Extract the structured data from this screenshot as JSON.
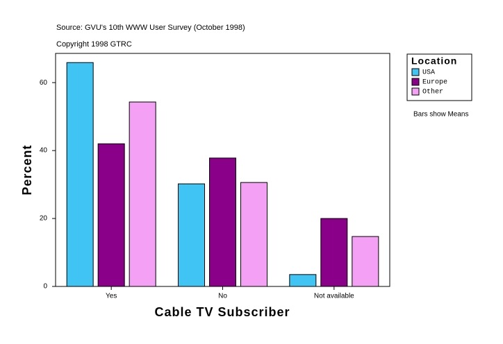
{
  "chart_data": {
    "type": "bar",
    "subtitle": "Source: GVU's 10th WWW User Survey (October 1998)",
    "copyright": "Copyright 1998 GTRC",
    "x_label": "Cable TV Subscriber",
    "y_label": "Percent",
    "legend_title": "Location",
    "note": "Bars show Means",
    "categories": [
      "Yes",
      "No",
      "Not available"
    ],
    "series": [
      {
        "name": "USA",
        "color": "#40c4f4",
        "values": [
          65.9,
          30.2,
          3.5
        ]
      },
      {
        "name": "Europe",
        "color": "#8b0088",
        "values": [
          42.0,
          37.8,
          20.0
        ]
      },
      {
        "name": "Other",
        "color": "#f4a0f4",
        "values": [
          54.3,
          30.6,
          14.7
        ]
      }
    ],
    "ylim": [
      0,
      68.6
    ],
    "yticks": [
      0,
      20,
      40,
      60
    ],
    "legend": "right"
  }
}
